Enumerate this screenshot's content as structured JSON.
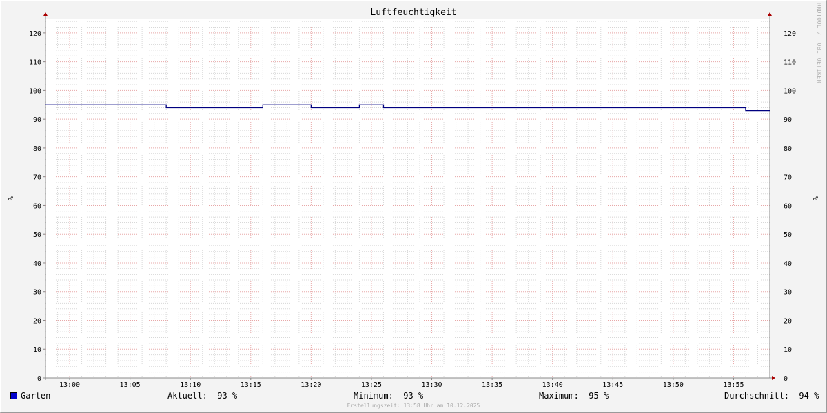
{
  "chart_data": {
    "type": "line",
    "title": "Luftfeuchtigkeit",
    "ylabel": "%",
    "ylabel_right": "%",
    "xlabel": "",
    "ylim": [
      0,
      125
    ],
    "xlim": [
      "12:58",
      "13:58"
    ],
    "yticks": [
      0,
      10,
      20,
      30,
      40,
      50,
      60,
      70,
      80,
      90,
      100,
      110,
      120
    ],
    "xticks": [
      "13:00",
      "13:05",
      "13:10",
      "13:15",
      "13:20",
      "13:25",
      "13:30",
      "13:35",
      "13:40",
      "13:45",
      "13:50",
      "13:55"
    ],
    "grid": true,
    "line_style": "step",
    "series": [
      {
        "name": "Garten",
        "color": "#000080",
        "legend_color": "#0000cc",
        "points": [
          {
            "x": "12:58",
            "y": 95
          },
          {
            "x": "13:08",
            "y": 94
          },
          {
            "x": "13:16",
            "y": 95
          },
          {
            "x": "13:20",
            "y": 94
          },
          {
            "x": "13:24",
            "y": 95
          },
          {
            "x": "13:26",
            "y": 94
          },
          {
            "x": "13:56",
            "y": 93
          },
          {
            "x": "13:58",
            "y": 93
          }
        ]
      }
    ]
  },
  "legend": {
    "series_name": "Garten",
    "current": "Aktuell:  93 %",
    "minimum": "Minimum:  93 %",
    "maximum": "Maximum:  95 %",
    "average": "Durchschnitt:  94 %"
  },
  "watermark": "RRDTOOL / TOBI OETIKER",
  "footer": "Erstellungszeit: 13:58 Uhr am 10.12.2025"
}
